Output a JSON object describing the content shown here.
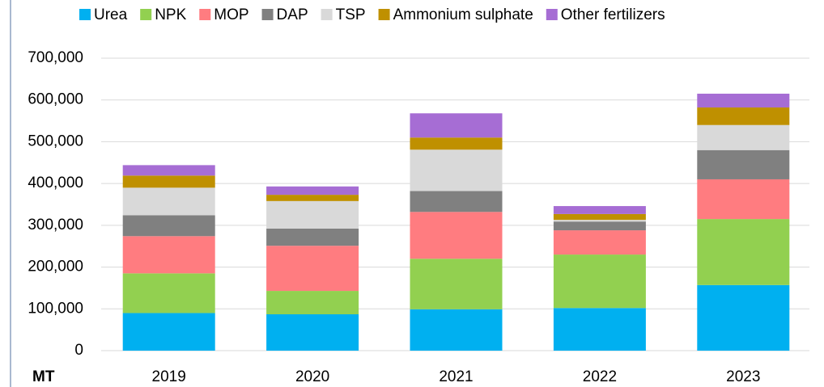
{
  "chart_data": {
    "type": "stacked_bar",
    "y_unit_label": "MT",
    "categories": [
      "2019",
      "2020",
      "2021",
      "2022",
      "2023"
    ],
    "series": [
      {
        "name": "Urea",
        "color": "#00b0f0",
        "values": [
          90000,
          87000,
          99000,
          102000,
          157000
        ]
      },
      {
        "name": "NPK",
        "color": "#92d050",
        "values": [
          95000,
          56000,
          121000,
          128000,
          158000
        ]
      },
      {
        "name": "MOP",
        "color": "#ff7c80",
        "values": [
          89000,
          108000,
          112000,
          58000,
          95000
        ]
      },
      {
        "name": "DAP",
        "color": "#808080",
        "values": [
          50000,
          41000,
          50000,
          21000,
          70000
        ]
      },
      {
        "name": "TSP",
        "color": "#d9d9d9",
        "values": [
          66000,
          66000,
          99000,
          4000,
          60000
        ]
      },
      {
        "name": "Ammonium sulphate",
        "color": "#bf9000",
        "values": [
          29000,
          15000,
          29000,
          14000,
          42000
        ]
      },
      {
        "name": "Other fertilizers",
        "color": "#a66dd4",
        "values": [
          25000,
          20000,
          58000,
          19000,
          33000
        ]
      }
    ],
    "ylim": [
      0,
      700000
    ],
    "yticks": [
      0,
      {
        "value": 100000,
        "label": "100,000"
      },
      {
        "value": 200000,
        "label": "200,000"
      },
      {
        "value": 300000,
        "label": "300,000"
      },
      {
        "value": 400000,
        "label": "400,000"
      },
      {
        "value": 500000,
        "label": "500,000"
      },
      {
        "value": 600000,
        "label": "600,000"
      },
      {
        "value": 700000,
        "label": "700,000"
      }
    ],
    "grid": true,
    "legend": "top"
  }
}
